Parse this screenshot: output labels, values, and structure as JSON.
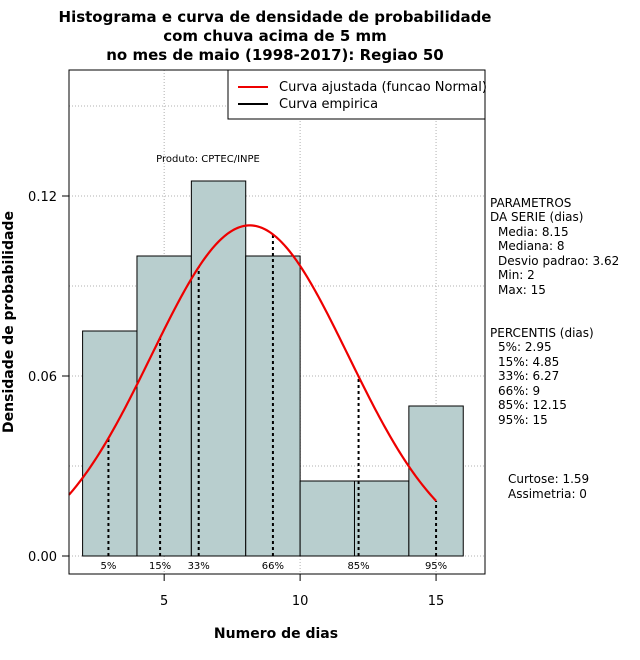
{
  "chart_data": {
    "type": "bar",
    "title_lines": [
      "Histograma e curva de densidade de probabilidade",
      "com chuva acima de 5 mm",
      "no mes de maio (1998-2017): Regiao 50"
    ],
    "xlabel": "Numero de dias",
    "ylabel": "Densidade de probabilidade",
    "xlim": [
      1.5,
      16.8
    ],
    "ylim": [
      -0.006,
      0.162
    ],
    "x_ticks": [
      5,
      10,
      15
    ],
    "y_ticks": [
      0.0,
      0.06,
      0.12
    ],
    "y_tick_labels": [
      "0.00",
      "0.06",
      "0.12"
    ],
    "grid": true,
    "bars": [
      {
        "x0": 2,
        "x1": 4,
        "density": 0.075
      },
      {
        "x0": 4,
        "x1": 6,
        "density": 0.1
      },
      {
        "x0": 6,
        "x1": 8,
        "density": 0.125
      },
      {
        "x0": 8,
        "x1": 10,
        "density": 0.1
      },
      {
        "x0": 10,
        "x1": 12,
        "density": 0.025
      },
      {
        "x0": 12,
        "x1": 14,
        "density": 0.025
      },
      {
        "x0": 14,
        "x1": 16,
        "density": 0.05
      }
    ],
    "bar_color": "#b8cece",
    "normal_curve": {
      "mean": 8.15,
      "sd": 3.62,
      "x_from": 1.5,
      "x_to": 15.0,
      "color": "#ee0000"
    },
    "percentiles": [
      {
        "label": "5%",
        "x": 2.95
      },
      {
        "label": "15%",
        "x": 4.85
      },
      {
        "label": "33%",
        "x": 6.27
      },
      {
        "label": "66%",
        "x": 9
      },
      {
        "label": "85%",
        "x": 12.15
      },
      {
        "label": "95%",
        "x": 15
      }
    ],
    "legend": {
      "position": "top-right",
      "entries": [
        {
          "label": "Curva ajustada (funcao Normal)",
          "color": "#ee0000"
        },
        {
          "label": "Curva empirica",
          "color": "#000000"
        }
      ]
    },
    "annotation": "Produto: CPTEC/INPE",
    "parametros": {
      "heading_lines": [
        "PARAMETROS",
        "DA SERIE (dias)"
      ],
      "items": [
        "Media: 8.15",
        "Mediana: 8",
        "Desvio padrao: 3.62",
        "Min: 2",
        "Max: 15"
      ]
    },
    "percentis": {
      "heading": "PERCENTIS (dias)",
      "items": [
        "5%: 2.95",
        "15%: 4.85",
        "33%: 6.27",
        "66%: 9",
        "85%: 12.15",
        "95%: 15"
      ]
    },
    "shape": {
      "curtose": "Curtose: 1.59",
      "assimetria": "Assimetria: 0"
    }
  }
}
